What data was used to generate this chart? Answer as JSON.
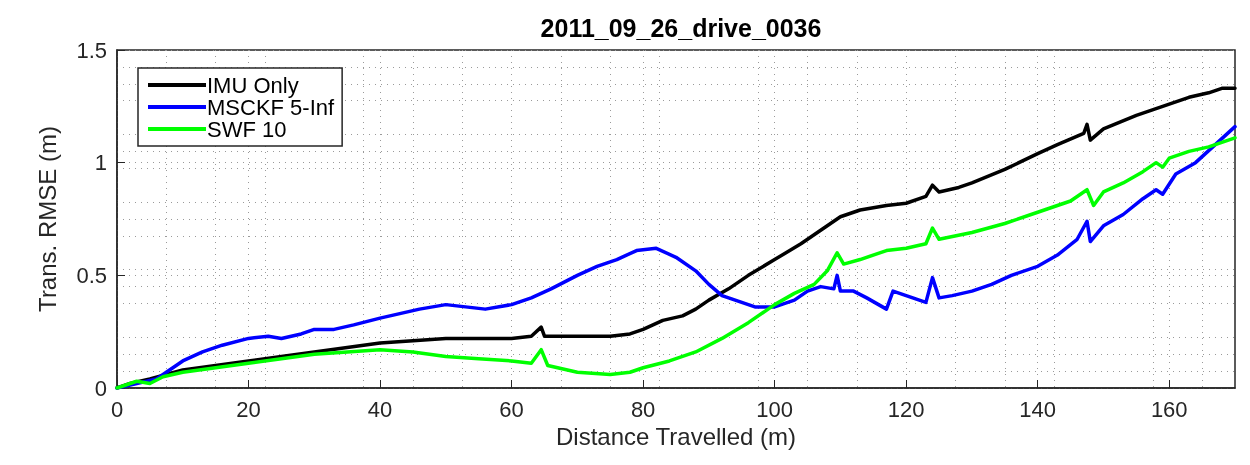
{
  "chart_data": {
    "type": "line",
    "title": "2011_09_26_drive_0036",
    "xlabel": "Distance Travelled (m)",
    "ylabel": "Trans. RMSE (m)",
    "xlim": [
      0,
      170
    ],
    "xticks": [
      0,
      20,
      40,
      60,
      80,
      100,
      120,
      140,
      160
    ],
    "ylim": [
      0,
      1.5
    ],
    "yticks": [
      0,
      0.5,
      1,
      1.5
    ],
    "grid": true,
    "legend": "top left",
    "marker": "none",
    "line_style": "solid",
    "series": [
      {
        "name": "IMU Only",
        "color": "#000000",
        "x": [
          0,
          2,
          5,
          10,
          15,
          20,
          25,
          30,
          35,
          40,
          45,
          50,
          55,
          60,
          63,
          64.5,
          65,
          70,
          75,
          78,
          80,
          83,
          86,
          88,
          90,
          93,
          96,
          100,
          104,
          107,
          110,
          113,
          117,
          120,
          123,
          124,
          125,
          128,
          130,
          135,
          140,
          143,
          147,
          147.5,
          148,
          150,
          155,
          158,
          160,
          163,
          166,
          168,
          170
        ],
        "values": [
          0,
          0.02,
          0.04,
          0.08,
          0.1,
          0.12,
          0.14,
          0.16,
          0.18,
          0.2,
          0.21,
          0.22,
          0.22,
          0.22,
          0.23,
          0.27,
          0.23,
          0.23,
          0.23,
          0.24,
          0.26,
          0.3,
          0.32,
          0.35,
          0.39,
          0.44,
          0.5,
          0.57,
          0.64,
          0.7,
          0.76,
          0.79,
          0.81,
          0.82,
          0.85,
          0.9,
          0.87,
          0.89,
          0.91,
          0.97,
          1.04,
          1.08,
          1.13,
          1.17,
          1.1,
          1.15,
          1.21,
          1.24,
          1.26,
          1.29,
          1.31,
          1.33,
          1.33
        ]
      },
      {
        "name": "MSCKF 5-Inf",
        "color": "#0000ff",
        "x": [
          0,
          3,
          6,
          8,
          10,
          13,
          16,
          20,
          23,
          25,
          28,
          30,
          33,
          36,
          40,
          43,
          46,
          50,
          53,
          56,
          60,
          63,
          66,
          70,
          73,
          76,
          79,
          82,
          85,
          88,
          90,
          92,
          95,
          97,
          100,
          103,
          105,
          107,
          109,
          109.5,
          110,
          112,
          114,
          117,
          118,
          121,
          123,
          124,
          125,
          127,
          130,
          133,
          136,
          140,
          143,
          146,
          147.5,
          148,
          150,
          153,
          156,
          158,
          159,
          161,
          164,
          167,
          170
        ],
        "values": [
          0,
          0.02,
          0.04,
          0.08,
          0.12,
          0.16,
          0.19,
          0.22,
          0.23,
          0.22,
          0.24,
          0.26,
          0.26,
          0.28,
          0.31,
          0.33,
          0.35,
          0.37,
          0.36,
          0.35,
          0.37,
          0.4,
          0.44,
          0.5,
          0.54,
          0.57,
          0.61,
          0.62,
          0.58,
          0.52,
          0.46,
          0.41,
          0.38,
          0.36,
          0.36,
          0.39,
          0.43,
          0.45,
          0.44,
          0.5,
          0.43,
          0.43,
          0.4,
          0.35,
          0.43,
          0.4,
          0.38,
          0.49,
          0.4,
          0.41,
          0.43,
          0.46,
          0.5,
          0.54,
          0.59,
          0.66,
          0.74,
          0.65,
          0.72,
          0.77,
          0.84,
          0.88,
          0.86,
          0.95,
          1.0,
          1.08,
          1.16
        ]
      },
      {
        "name": "SWF 10",
        "color": "#00ff00",
        "x": [
          0,
          3,
          5,
          7,
          10,
          15,
          20,
          25,
          30,
          35,
          40,
          45,
          50,
          55,
          60,
          63,
          64.5,
          65.5,
          70,
          75,
          78,
          80,
          84,
          88,
          92,
          96,
          100,
          103,
          106,
          108,
          109.5,
          110.5,
          113,
          117,
          120,
          123,
          124,
          125,
          130,
          135,
          140,
          145,
          147.5,
          148.5,
          150,
          153,
          156,
          158,
          159,
          160,
          163,
          166,
          170
        ],
        "values": [
          0,
          0.03,
          0.02,
          0.05,
          0.07,
          0.09,
          0.11,
          0.13,
          0.15,
          0.16,
          0.17,
          0.16,
          0.14,
          0.13,
          0.12,
          0.11,
          0.17,
          0.1,
          0.07,
          0.06,
          0.07,
          0.09,
          0.12,
          0.16,
          0.22,
          0.29,
          0.37,
          0.42,
          0.46,
          0.52,
          0.6,
          0.55,
          0.57,
          0.61,
          0.62,
          0.64,
          0.71,
          0.66,
          0.69,
          0.73,
          0.78,
          0.83,
          0.88,
          0.81,
          0.87,
          0.91,
          0.96,
          1.0,
          0.98,
          1.02,
          1.05,
          1.07,
          1.11
        ]
      }
    ]
  }
}
